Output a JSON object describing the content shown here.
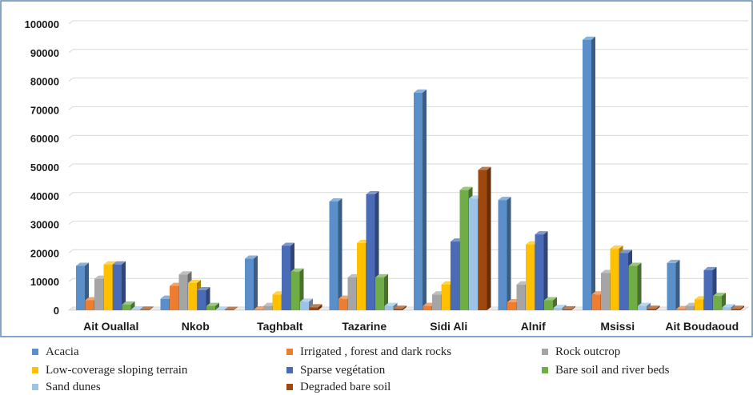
{
  "chart_data": {
    "type": "bar",
    "title": "",
    "xlabel": "",
    "ylabel": "",
    "ylim": [
      0,
      100000
    ],
    "yticks": [
      0,
      10000,
      20000,
      30000,
      40000,
      50000,
      60000,
      70000,
      80000,
      90000,
      100000
    ],
    "grid": true,
    "legend_position": "bottom",
    "style": "3d-clustered-columns",
    "categories": [
      "Ait Ouallal",
      "Nkob",
      "Taghbalt",
      "Tazarine",
      "Sidi Ali",
      "Alnif",
      "Msissi",
      "Ait Boudaoud"
    ],
    "series": [
      {
        "name": "Acacia",
        "color": "#5b8fc9",
        "values": [
          15500,
          4000,
          18000,
          38000,
          76000,
          38500,
          94500,
          16500
        ]
      },
      {
        "name": "Irrigated , forest and dark rocks",
        "color": "#ed7d31",
        "values": [
          3500,
          8500,
          300,
          4000,
          1500,
          2800,
          5500,
          400
        ]
      },
      {
        "name": "Rock outcrop",
        "color": "#a5a5a5",
        "values": [
          11000,
          12500,
          1500,
          11500,
          5500,
          9000,
          13000,
          1500
        ]
      },
      {
        "name": "Low-coverage sloping terrain",
        "color": "#ffc000",
        "values": [
          16000,
          9500,
          5500,
          23500,
          9000,
          23000,
          21500,
          3800
        ]
      },
      {
        "name": "Sparse vegétation",
        "color": "#4a6bb5",
        "values": [
          16000,
          7000,
          22500,
          40500,
          24000,
          26500,
          20000,
          14000
        ]
      },
      {
        "name": "Bare soil and river beds",
        "color": "#70ad47",
        "values": [
          2000,
          1500,
          13500,
          11500,
          42000,
          3500,
          15500,
          5000
        ]
      },
      {
        "name": "Sand dunes",
        "color": "#9dc3e6",
        "values": [
          300,
          200,
          3000,
          1500,
          39000,
          800,
          1500,
          1000
        ]
      },
      {
        "name": "Degraded bare soil",
        "color": "#9e480e",
        "values": [
          200,
          150,
          1000,
          500,
          49000,
          300,
          500,
          500
        ]
      }
    ]
  }
}
